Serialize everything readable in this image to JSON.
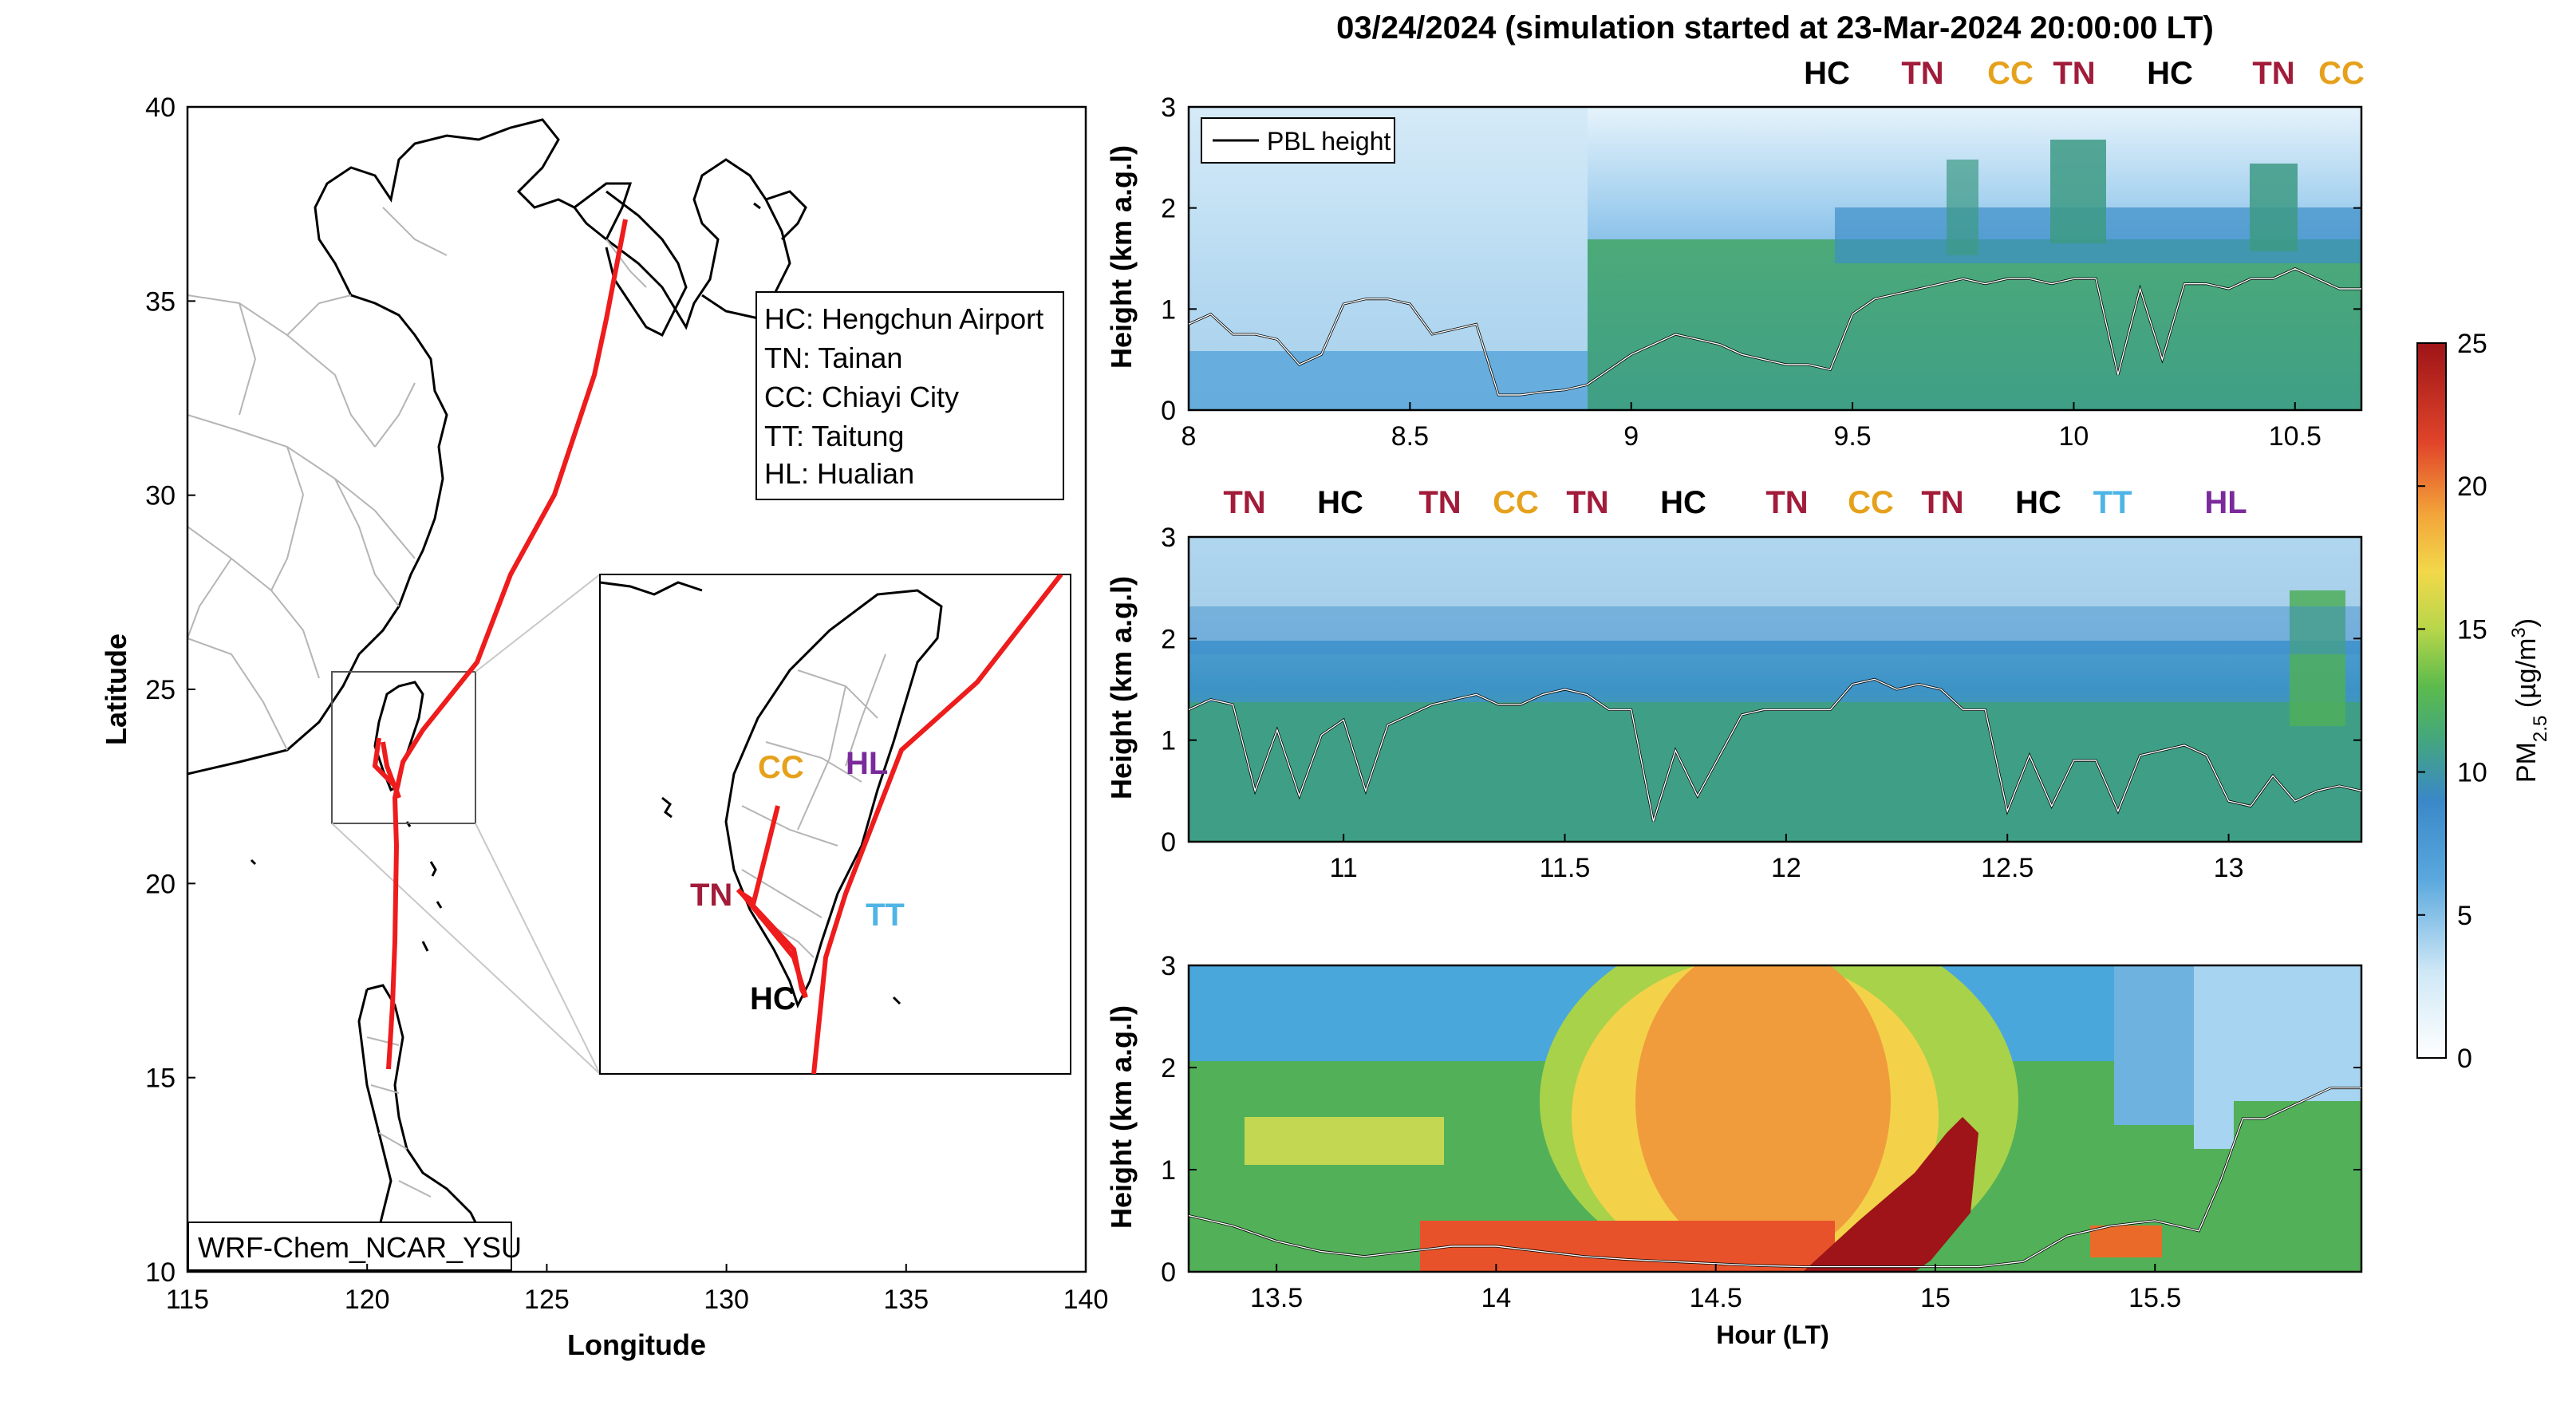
{
  "title": "03/24/2024 (simulation started at 23-Mar-2024 20:00:00 LT)",
  "colors": {
    "route": "#ee1c1c",
    "HC": "#000000",
    "TN": "#a11c3a",
    "CC": "#e6a11c",
    "TT": "#4fb4e6",
    "HL": "#7a2a9a"
  },
  "map": {
    "xlabel": "Longitude",
    "ylabel": "Latitude",
    "xticks": [
      "115",
      "120",
      "125",
      "130",
      "135",
      "140"
    ],
    "yticks": [
      "10",
      "15",
      "20",
      "25",
      "30",
      "35",
      "40"
    ],
    "legend_lines": [
      "HC: Hengchun Airport",
      "TN: Tainan",
      "CC: Chiayi City",
      "TT: Taitung",
      "HL: Hualian"
    ],
    "model_label": "WRF-Chem_NCAR_YSU",
    "inset_sites": [
      "CC",
      "HL",
      "TN",
      "TT",
      "HC"
    ]
  },
  "chart_data": [
    {
      "type": "heatmap",
      "panel": "top",
      "ylabel": "Height (km a.g.l)",
      "xlim": [
        8,
        10.65
      ],
      "ylim": [
        0,
        3
      ],
      "xticks": [
        "8",
        "8.5",
        "9",
        "9.5",
        "10",
        "10.5"
      ],
      "yticks": [
        "0",
        "1",
        "2",
        "3"
      ],
      "legend": "PBL height",
      "site_labels": [
        "HC",
        "TN",
        "CC",
        "TN",
        "HC",
        "TN",
        "CC"
      ],
      "pbl_height": {
        "x": [
          8.0,
          8.05,
          8.1,
          8.15,
          8.2,
          8.25,
          8.3,
          8.35,
          8.4,
          8.45,
          8.5,
          8.55,
          8.6,
          8.65,
          8.7,
          8.75,
          8.8,
          8.85,
          8.9,
          8.95,
          9.0,
          9.05,
          9.1,
          9.15,
          9.2,
          9.25,
          9.3,
          9.35,
          9.4,
          9.45,
          9.5,
          9.55,
          9.6,
          9.65,
          9.7,
          9.75,
          9.8,
          9.85,
          9.9,
          9.95,
          10.0,
          10.05,
          10.1,
          10.15,
          10.2,
          10.25,
          10.3,
          10.35,
          10.4,
          10.45,
          10.5,
          10.55,
          10.6,
          10.65
        ],
        "y": [
          0.85,
          0.95,
          0.75,
          0.75,
          0.7,
          0.45,
          0.55,
          1.05,
          1.1,
          1.1,
          1.05,
          0.75,
          0.8,
          0.85,
          0.15,
          0.15,
          0.18,
          0.2,
          0.25,
          0.4,
          0.55,
          0.65,
          0.75,
          0.7,
          0.65,
          0.55,
          0.5,
          0.45,
          0.45,
          0.4,
          0.95,
          1.1,
          1.15,
          1.2,
          1.25,
          1.3,
          1.25,
          1.3,
          1.3,
          1.25,
          1.3,
          1.3,
          0.35,
          1.2,
          0.5,
          1.25,
          1.25,
          1.2,
          1.3,
          1.3,
          1.4,
          1.3,
          1.2,
          1.2
        ]
      }
    },
    {
      "type": "heatmap",
      "panel": "middle",
      "ylabel": "Height (km a.g.l)",
      "xlim": [
        10.65,
        13.3
      ],
      "ylim": [
        0,
        3
      ],
      "xticks": [
        "11",
        "11.5",
        "12",
        "12.5",
        "13"
      ],
      "yticks": [
        "0",
        "1",
        "2",
        "3"
      ],
      "site_labels": [
        "TN",
        "HC",
        "TN",
        "CC",
        "TN",
        "HC",
        "TN",
        "CC",
        "TN",
        "HC",
        "TT",
        "HL"
      ],
      "pbl_height": {
        "x": [
          10.65,
          10.7,
          10.75,
          10.8,
          10.85,
          10.9,
          10.95,
          11.0,
          11.05,
          11.1,
          11.15,
          11.2,
          11.25,
          11.3,
          11.35,
          11.4,
          11.45,
          11.5,
          11.55,
          11.6,
          11.65,
          11.7,
          11.75,
          11.8,
          11.85,
          11.9,
          11.95,
          12.0,
          12.05,
          12.1,
          12.15,
          12.2,
          12.25,
          12.3,
          12.35,
          12.4,
          12.45,
          12.5,
          12.55,
          12.6,
          12.65,
          12.7,
          12.75,
          12.8,
          12.85,
          12.9,
          12.95,
          13.0,
          13.05,
          13.1,
          13.15,
          13.2,
          13.25,
          13.3
        ],
        "y": [
          1.3,
          1.4,
          1.35,
          0.5,
          1.1,
          0.45,
          1.05,
          1.2,
          0.5,
          1.15,
          1.25,
          1.35,
          1.4,
          1.45,
          1.35,
          1.35,
          1.45,
          1.5,
          1.45,
          1.3,
          1.3,
          0.2,
          0.9,
          0.45,
          0.85,
          1.25,
          1.3,
          1.3,
          1.3,
          1.3,
          1.55,
          1.6,
          1.5,
          1.55,
          1.5,
          1.3,
          1.3,
          0.3,
          0.85,
          0.35,
          0.8,
          0.8,
          0.3,
          0.85,
          0.9,
          0.95,
          0.85,
          0.4,
          0.35,
          0.65,
          0.4,
          0.5,
          0.55,
          0.5
        ]
      }
    },
    {
      "type": "heatmap",
      "panel": "bottom",
      "xlabel": "Hour (LT)",
      "ylabel": "Height (km a.g.l)",
      "xlim": [
        13.3,
        15.97
      ],
      "ylim": [
        0,
        3
      ],
      "xticks": [
        "13.5",
        "14",
        "14.5",
        "15",
        "15.5"
      ],
      "yticks": [
        "0",
        "1",
        "2",
        "3"
      ],
      "pbl_height": {
        "x": [
          13.3,
          13.4,
          13.5,
          13.6,
          13.7,
          13.8,
          13.9,
          14.0,
          14.1,
          14.2,
          14.3,
          14.4,
          14.5,
          14.6,
          14.7,
          14.8,
          14.9,
          15.0,
          15.1,
          15.2,
          15.3,
          15.4,
          15.5,
          15.6,
          15.65,
          15.7,
          15.75,
          15.8,
          15.9,
          15.97
        ],
        "y": [
          0.55,
          0.45,
          0.3,
          0.2,
          0.15,
          0.2,
          0.25,
          0.25,
          0.2,
          0.15,
          0.12,
          0.1,
          0.08,
          0.06,
          0.05,
          0.05,
          0.05,
          0.05,
          0.05,
          0.1,
          0.35,
          0.45,
          0.5,
          0.4,
          0.9,
          1.5,
          1.5,
          1.6,
          1.8,
          1.8
        ]
      }
    }
  ],
  "colorbar": {
    "label": "PM2.5 (µg/m3)",
    "ticks": [
      "0",
      "5",
      "10",
      "15",
      "20",
      "25"
    ],
    "range": [
      0,
      25
    ]
  }
}
